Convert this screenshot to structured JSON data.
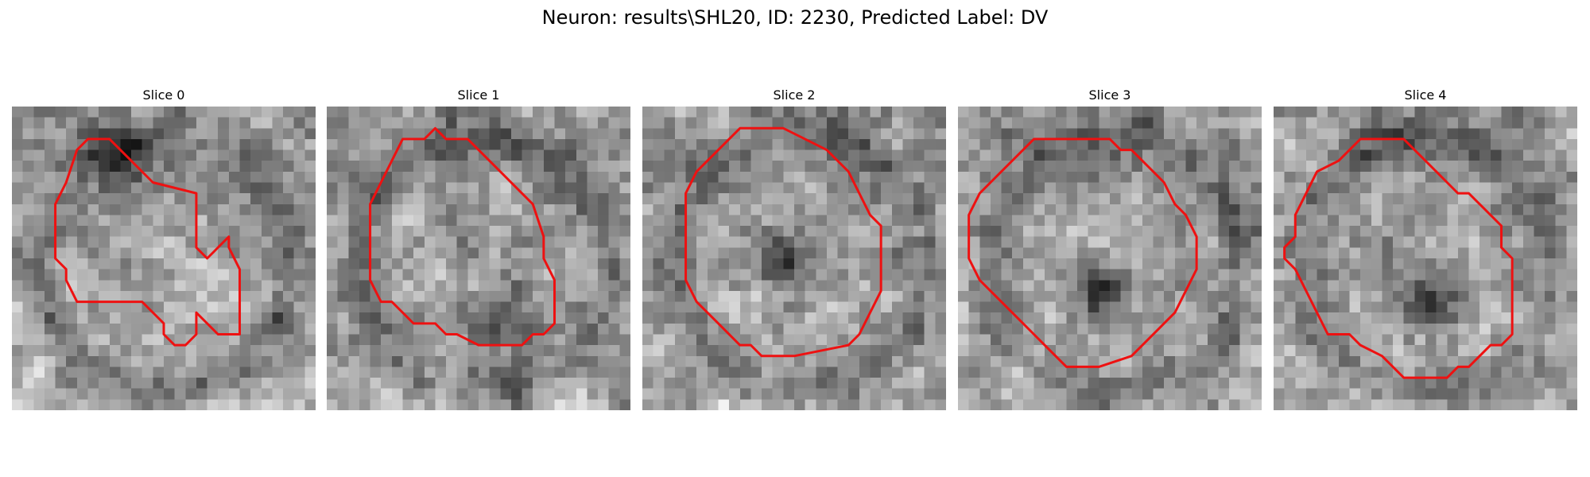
{
  "figure": {
    "title": "Neuron: results\\SHL20, ID: 2230, Predicted Label: DV"
  },
  "panels": [
    {
      "title": "Slice 0",
      "seed": 11,
      "dark_center": [
        0.35,
        0.15
      ],
      "contour": [
        [
          8,
          3
        ],
        [
          9,
          3
        ],
        [
          11,
          5
        ],
        [
          13,
          7
        ],
        [
          17,
          8
        ],
        [
          17,
          13
        ],
        [
          18,
          14
        ],
        [
          19,
          13
        ],
        [
          20,
          12
        ],
        [
          20,
          13
        ],
        [
          21,
          15
        ],
        [
          21,
          21
        ],
        [
          20,
          21
        ],
        [
          19,
          21
        ],
        [
          17,
          19
        ],
        [
          17,
          21
        ],
        [
          16,
          22
        ],
        [
          15,
          22
        ],
        [
          14,
          21
        ],
        [
          14,
          20
        ],
        [
          12,
          18
        ],
        [
          6,
          18
        ],
        [
          5,
          16
        ],
        [
          5,
          15
        ],
        [
          4,
          14
        ],
        [
          4,
          9
        ],
        [
          5,
          7
        ],
        [
          6,
          4
        ],
        [
          7,
          3
        ]
      ]
    },
    {
      "title": "Slice 1",
      "seed": 23,
      "dark_center": [
        0.55,
        0.7
      ],
      "contour": [
        [
          7,
          3
        ],
        [
          9,
          3
        ],
        [
          10,
          2
        ],
        [
          11,
          3
        ],
        [
          13,
          3
        ],
        [
          14,
          4
        ],
        [
          15,
          5
        ],
        [
          16,
          6
        ],
        [
          18,
          8
        ],
        [
          19,
          9
        ],
        [
          20,
          12
        ],
        [
          20,
          14
        ],
        [
          21,
          16
        ],
        [
          21,
          20
        ],
        [
          20,
          21
        ],
        [
          19,
          21
        ],
        [
          18,
          22
        ],
        [
          14,
          22
        ],
        [
          12,
          21
        ],
        [
          11,
          21
        ],
        [
          10,
          20
        ],
        [
          8,
          20
        ],
        [
          7,
          19
        ],
        [
          6,
          18
        ],
        [
          5,
          18
        ],
        [
          4,
          16
        ],
        [
          4,
          13
        ],
        [
          4,
          9
        ],
        [
          5,
          7
        ],
        [
          6,
          5
        ]
      ]
    },
    {
      "title": "Slice 2",
      "seed": 37,
      "dark_center": [
        0.45,
        0.5
      ],
      "contour": [
        [
          9,
          2
        ],
        [
          13,
          2
        ],
        [
          15,
          3
        ],
        [
          17,
          4
        ],
        [
          19,
          6
        ],
        [
          20,
          8
        ],
        [
          21,
          10
        ],
        [
          22,
          11
        ],
        [
          22,
          14
        ],
        [
          22,
          17
        ],
        [
          21,
          19
        ],
        [
          20,
          21
        ],
        [
          19,
          22
        ],
        [
          14,
          23
        ],
        [
          11,
          23
        ],
        [
          10,
          22
        ],
        [
          9,
          22
        ],
        [
          7,
          20
        ],
        [
          6,
          19
        ],
        [
          5,
          18
        ],
        [
          4,
          16
        ],
        [
          4,
          12
        ],
        [
          4,
          8
        ],
        [
          5,
          6
        ],
        [
          7,
          4
        ]
      ]
    },
    {
      "title": "Slice 3",
      "seed": 53,
      "dark_center": [
        0.45,
        0.6
      ],
      "contour": [
        [
          7,
          3
        ],
        [
          14,
          3
        ],
        [
          15,
          4
        ],
        [
          16,
          4
        ],
        [
          19,
          7
        ],
        [
          20,
          9
        ],
        [
          21,
          10
        ],
        [
          22,
          12
        ],
        [
          22,
          15
        ],
        [
          21,
          17
        ],
        [
          20,
          19
        ],
        [
          19,
          20
        ],
        [
          17,
          22
        ],
        [
          16,
          23
        ],
        [
          13,
          24
        ],
        [
          10,
          24
        ],
        [
          8,
          22
        ],
        [
          7,
          21
        ],
        [
          6,
          20
        ],
        [
          5,
          19
        ],
        [
          4,
          18
        ],
        [
          2,
          16
        ],
        [
          1,
          14
        ],
        [
          1,
          10
        ],
        [
          2,
          8
        ],
        [
          4,
          6
        ],
        [
          6,
          4
        ]
      ]
    },
    {
      "title": "Slice 4",
      "seed": 71,
      "dark_center": [
        0.5,
        0.62
      ],
      "contour": [
        [
          8,
          3
        ],
        [
          12,
          3
        ],
        [
          14,
          5
        ],
        [
          15,
          6
        ],
        [
          16,
          7
        ],
        [
          17,
          8
        ],
        [
          18,
          8
        ],
        [
          19,
          9
        ],
        [
          20,
          10
        ],
        [
          21,
          11
        ],
        [
          21,
          13
        ],
        [
          22,
          14
        ],
        [
          22,
          17
        ],
        [
          22,
          19
        ],
        [
          22,
          21
        ],
        [
          21,
          22
        ],
        [
          20,
          22
        ],
        [
          18,
          24
        ],
        [
          17,
          24
        ],
        [
          16,
          25
        ],
        [
          12,
          25
        ],
        [
          10,
          23
        ],
        [
          8,
          22
        ],
        [
          7,
          21
        ],
        [
          5,
          21
        ],
        [
          4,
          19
        ],
        [
          3,
          17
        ],
        [
          2,
          15
        ],
        [
          1,
          14
        ],
        [
          1,
          13
        ],
        [
          2,
          12
        ],
        [
          2,
          10
        ],
        [
          3,
          8
        ],
        [
          4,
          6
        ],
        [
          6,
          5
        ]
      ]
    }
  ]
}
